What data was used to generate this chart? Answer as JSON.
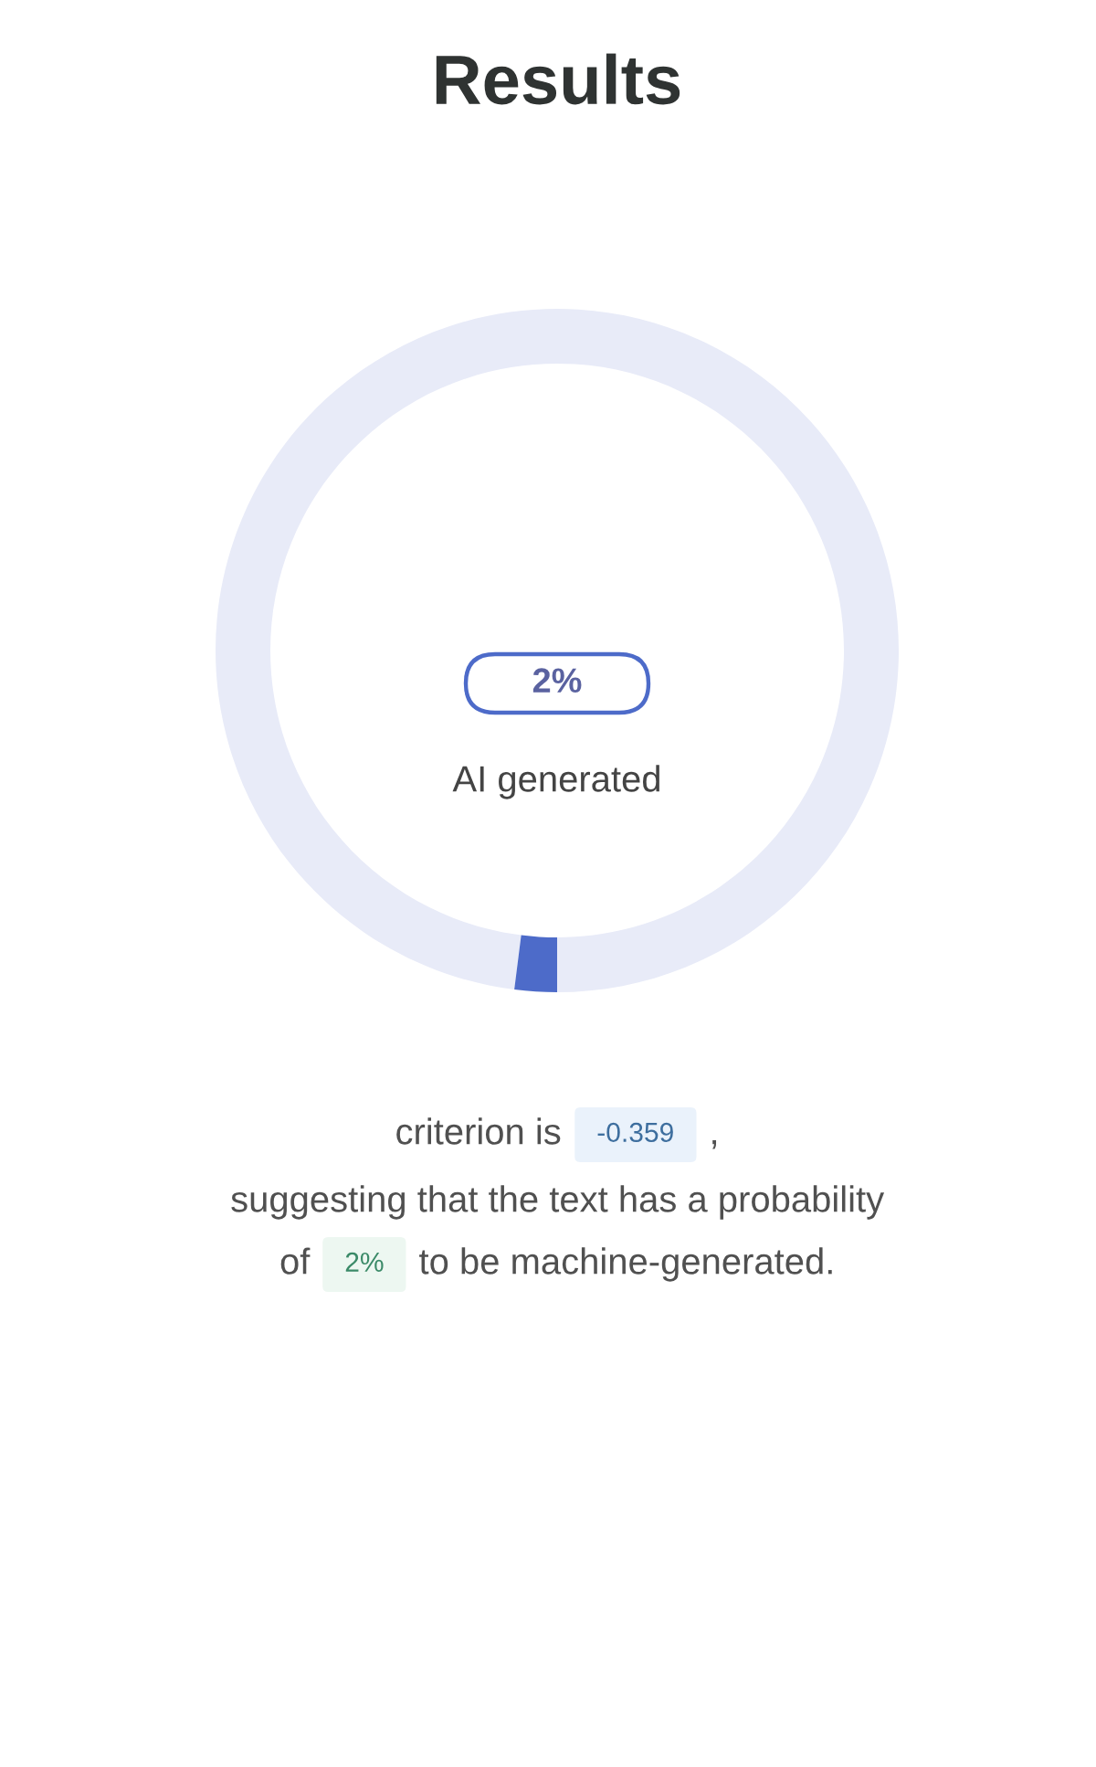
{
  "chart_data": {
    "type": "donut",
    "title": "Results",
    "categories": [
      "AI generated",
      null
    ],
    "values": [
      2,
      98
    ],
    "colors": [
      "#4d6bc9",
      "#e8ebf8"
    ],
    "value_labels": [
      "2%",
      null
    ],
    "annotations": [
      "criterion is",
      "-0.359",
      ",",
      "suggesting that the text has a probability",
      "of",
      "2%",
      "to be machine-generated."
    ]
  }
}
